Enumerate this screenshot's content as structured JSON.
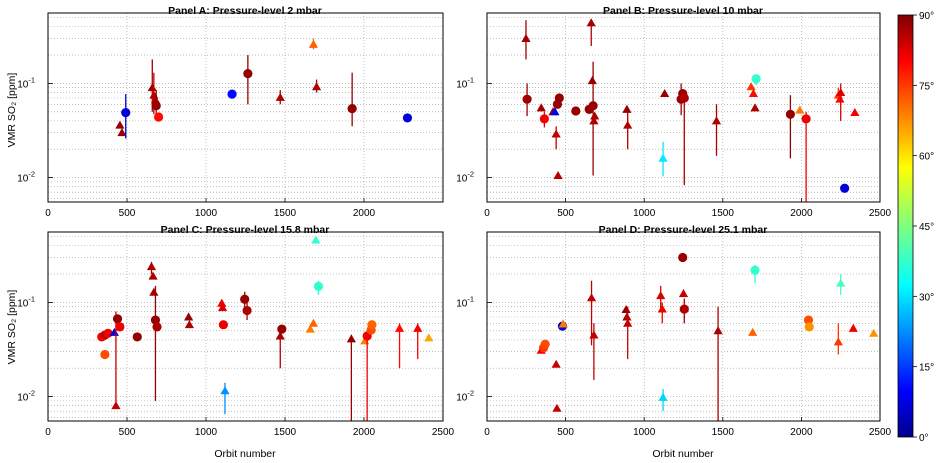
{
  "colors": {
    "cold": "#00008b",
    "hot": "#7f0000"
  },
  "chart_data": {
    "type": "scatter",
    "ylabel": "VMR SO₂ [ppm]",
    "xlabel": "Orbit number",
    "yscale": "log",
    "colorbar": {
      "min": 0,
      "max": 90,
      "ticks": [
        "0°",
        "15°",
        "30°",
        "45°",
        "60°",
        "75°",
        "90°"
      ],
      "colormap": "jet",
      "meaning": "latitude"
    },
    "panels": [
      {
        "title": "Panel A: Pressure-level 2 mbar",
        "xlim": [
          0,
          2500
        ],
        "ylim": [
          0.0055,
          0.56
        ],
        "xticks": [
          0,
          500,
          1000,
          1500,
          2000
        ],
        "yticks": [
          {
            "v": 0.01,
            "b": "10",
            "e": "-2"
          },
          {
            "v": 0.1,
            "b": "10",
            "e": "-1"
          }
        ],
        "xlabel_shown": false,
        "points": [
          {
            "x": 455,
            "y": 0.036,
            "m": "tri",
            "c": 88
          },
          {
            "x": 468,
            "y": 0.03,
            "m": "tri",
            "c": 88
          },
          {
            "x": 492,
            "y": 0.049,
            "m": "circ",
            "c": 8,
            "lo": 0.026,
            "hi": 0.077
          },
          {
            "x": 660,
            "y": 0.09,
            "m": "tri",
            "c": 87,
            "lo": 0.05,
            "hi": 0.18
          },
          {
            "x": 670,
            "y": 0.075,
            "m": "tri",
            "c": 85,
            "lo": 0.047,
            "hi": 0.13
          },
          {
            "x": 680,
            "y": 0.067,
            "m": "tri",
            "c": 86
          },
          {
            "x": 685,
            "y": 0.058,
            "m": "circ",
            "c": 88,
            "lo": 0.04,
            "hi": 0.085
          },
          {
            "x": 700,
            "y": 0.044,
            "m": "circ",
            "c": 78
          },
          {
            "x": 1165,
            "y": 0.077,
            "m": "circ",
            "c": 12
          },
          {
            "x": 1265,
            "y": 0.127,
            "m": "circ",
            "c": 88,
            "lo": 0.06,
            "hi": 0.2
          },
          {
            "x": 1470,
            "y": 0.071,
            "m": "tri",
            "c": 86,
            "lo": 0.06,
            "hi": 0.085
          },
          {
            "x": 1680,
            "y": 0.26,
            "m": "tri",
            "c": 70,
            "lo": 0.23,
            "hi": 0.3
          },
          {
            "x": 1700,
            "y": 0.092,
            "m": "tri",
            "c": 86,
            "lo": 0.08,
            "hi": 0.11
          },
          {
            "x": 1925,
            "y": 0.054,
            "m": "circ",
            "c": 88,
            "lo": 0.035,
            "hi": 0.13
          },
          {
            "x": 2275,
            "y": 0.043,
            "m": "circ",
            "c": 8
          }
        ]
      },
      {
        "title": "Panel B: Pressure-level 10 mbar",
        "xlim": [
          0,
          2500
        ],
        "ylim": [
          0.0055,
          0.56
        ],
        "xticks": [
          0,
          500,
          1000,
          1500,
          2000,
          2500
        ],
        "yticks": [
          {
            "v": 0.01,
            "b": "10",
            "e": "-2"
          },
          {
            "v": 0.1,
            "b": "10",
            "e": "-1"
          }
        ],
        "xlabel_shown": false,
        "points": [
          {
            "x": 248,
            "y": 0.3,
            "m": "tri",
            "c": 87,
            "lo": 0.18,
            "hi": 0.47
          },
          {
            "x": 255,
            "y": 0.068,
            "m": "circ",
            "c": 87,
            "lo": 0.045,
            "hi": 0.1
          },
          {
            "x": 345,
            "y": 0.055,
            "m": "tri",
            "c": 87
          },
          {
            "x": 365,
            "y": 0.042,
            "m": "circ",
            "c": 80,
            "lo": 0.034,
            "hi": 0.05
          },
          {
            "x": 420,
            "y": 0.05,
            "m": "tri",
            "c": 88
          },
          {
            "x": 432,
            "y": 0.05,
            "m": "tri",
            "c": 10
          },
          {
            "x": 440,
            "y": 0.029,
            "m": "tri",
            "c": 84,
            "lo": 0.02,
            "hi": 0.035
          },
          {
            "x": 448,
            "y": 0.06,
            "m": "circ",
            "c": 88
          },
          {
            "x": 452,
            "y": 0.0105,
            "m": "tri",
            "c": 85
          },
          {
            "x": 460,
            "y": 0.07,
            "m": "circ",
            "c": 88
          },
          {
            "x": 565,
            "y": 0.051,
            "m": "circ",
            "c": 88
          },
          {
            "x": 650,
            "y": 0.053,
            "m": "circ",
            "c": 88
          },
          {
            "x": 663,
            "y": 0.44,
            "m": "tri",
            "c": 86,
            "lo": 0.25,
            "hi": 0.47
          },
          {
            "x": 670,
            "y": 0.107,
            "m": "tri",
            "c": 88
          },
          {
            "x": 675,
            "y": 0.058,
            "m": "circ",
            "c": 88,
            "lo": 0.0105,
            "hi": 0.17
          },
          {
            "x": 680,
            "y": 0.04,
            "m": "tri",
            "c": 86
          },
          {
            "x": 685,
            "y": 0.045,
            "m": "tri",
            "c": 86
          },
          {
            "x": 890,
            "y": 0.053,
            "m": "tri",
            "c": 88
          },
          {
            "x": 895,
            "y": 0.036,
            "m": "tri",
            "c": 86,
            "lo": 0.02,
            "hi": 0.05
          },
          {
            "x": 1120,
            "y": 0.016,
            "m": "tri",
            "c": 32,
            "lo": 0.0103,
            "hi": 0.024
          },
          {
            "x": 1130,
            "y": 0.078,
            "m": "tri",
            "c": 88
          },
          {
            "x": 1235,
            "y": 0.068,
            "m": "circ",
            "c": 88,
            "lo": 0.046,
            "hi": 0.1
          },
          {
            "x": 1245,
            "y": 0.078,
            "m": "circ",
            "c": 88
          },
          {
            "x": 1255,
            "y": 0.07,
            "m": "circ",
            "c": 86,
            "lo": 0.0083,
            "hi": 0.085
          },
          {
            "x": 1460,
            "y": 0.04,
            "m": "tri",
            "c": 86,
            "lo": 0.017,
            "hi": 0.06
          },
          {
            "x": 1680,
            "y": 0.092,
            "m": "tri",
            "c": 74
          },
          {
            "x": 1695,
            "y": 0.078,
            "m": "tri",
            "c": 78
          },
          {
            "x": 1705,
            "y": 0.055,
            "m": "tri",
            "c": 86
          },
          {
            "x": 1712,
            "y": 0.112,
            "m": "circ",
            "c": 38,
            "lo": 0.095,
            "hi": 0.125
          },
          {
            "x": 1930,
            "y": 0.047,
            "m": "circ",
            "c": 88,
            "lo": 0.016,
            "hi": 0.075
          },
          {
            "x": 1990,
            "y": 0.052,
            "m": "tri",
            "c": 68
          },
          {
            "x": 2030,
            "y": 0.042,
            "m": "circ",
            "c": 80,
            "lo": 0.0055,
            "hi": 0.05
          },
          {
            "x": 2235,
            "y": 0.075,
            "m": "tri",
            "c": 74,
            "lo": 0.063,
            "hi": 0.09
          },
          {
            "x": 2245,
            "y": 0.068,
            "m": "tri",
            "c": 78
          },
          {
            "x": 2250,
            "y": 0.08,
            "m": "tri",
            "c": 82,
            "lo": 0.04,
            "hi": 0.1
          },
          {
            "x": 2275,
            "y": 0.0077,
            "m": "circ",
            "c": 8
          },
          {
            "x": 2340,
            "y": 0.049,
            "m": "tri",
            "c": 80
          }
        ]
      },
      {
        "title": "Panel C: Pressure-level 15.8 mbar",
        "xlim": [
          0,
          2500
        ],
        "ylim": [
          0.0055,
          0.56
        ],
        "xticks": [
          0,
          500,
          1000,
          1500,
          2000,
          2500
        ],
        "yticks": [
          {
            "v": 0.01,
            "b": "10",
            "e": "-2"
          },
          {
            "v": 0.1,
            "b": "10",
            "e": "-1"
          }
        ],
        "xlabel_shown": true,
        "points": [
          {
            "x": 340,
            "y": 0.043,
            "m": "circ",
            "c": 80
          },
          {
            "x": 360,
            "y": 0.045,
            "m": "circ",
            "c": 84
          },
          {
            "x": 360,
            "y": 0.028,
            "m": "circ",
            "c": 72
          },
          {
            "x": 380,
            "y": 0.047,
            "m": "circ",
            "c": 80
          },
          {
            "x": 420,
            "y": 0.048,
            "m": "tri",
            "c": 8
          },
          {
            "x": 430,
            "y": 0.008,
            "m": "tri",
            "c": 84,
            "lo": 0.008,
            "hi": 0.08
          },
          {
            "x": 440,
            "y": 0.067,
            "m": "circ",
            "c": 88
          },
          {
            "x": 455,
            "y": 0.055,
            "m": "circ",
            "c": 80
          },
          {
            "x": 565,
            "y": 0.043,
            "m": "circ",
            "c": 88
          },
          {
            "x": 655,
            "y": 0.24,
            "m": "tri",
            "c": 86,
            "lo": 0.2,
            "hi": 0.27
          },
          {
            "x": 665,
            "y": 0.19,
            "m": "tri",
            "c": 86
          },
          {
            "x": 670,
            "y": 0.128,
            "m": "tri",
            "c": 87
          },
          {
            "x": 680,
            "y": 0.065,
            "m": "circ",
            "c": 88,
            "lo": 0.009,
            "hi": 0.15
          },
          {
            "x": 690,
            "y": 0.055,
            "m": "circ",
            "c": 86
          },
          {
            "x": 890,
            "y": 0.07,
            "m": "tri",
            "c": 88
          },
          {
            "x": 895,
            "y": 0.058,
            "m": "tri",
            "c": 86
          },
          {
            "x": 1100,
            "y": 0.098,
            "m": "tri",
            "c": 80
          },
          {
            "x": 1105,
            "y": 0.088,
            "m": "tri",
            "c": 82
          },
          {
            "x": 1110,
            "y": 0.058,
            "m": "circ",
            "c": 80
          },
          {
            "x": 1120,
            "y": 0.0115,
            "m": "tri",
            "c": 24,
            "lo": 0.0065,
            "hi": 0.014
          },
          {
            "x": 1245,
            "y": 0.108,
            "m": "circ",
            "c": 88,
            "lo": 0.08,
            "hi": 0.13
          },
          {
            "x": 1260,
            "y": 0.082,
            "m": "circ",
            "c": 86,
            "lo": 0.065,
            "hi": 0.1
          },
          {
            "x": 1470,
            "y": 0.044,
            "m": "tri",
            "c": 86,
            "lo": 0.02,
            "hi": 0.05
          },
          {
            "x": 1480,
            "y": 0.052,
            "m": "circ",
            "c": 88
          },
          {
            "x": 1660,
            "y": 0.052,
            "m": "tri",
            "c": 68
          },
          {
            "x": 1680,
            "y": 0.06,
            "m": "tri",
            "c": 70
          },
          {
            "x": 1695,
            "y": 0.46,
            "m": "tri",
            "c": 38
          },
          {
            "x": 1712,
            "y": 0.148,
            "m": "circ",
            "c": 38,
            "lo": 0.12,
            "hi": 0.17
          },
          {
            "x": 1920,
            "y": 0.041,
            "m": "tri",
            "c": 88,
            "lo": 0.0055,
            "hi": 0.045
          },
          {
            "x": 2005,
            "y": 0.039,
            "m": "tri",
            "c": 68
          },
          {
            "x": 2020,
            "y": 0.044,
            "m": "circ",
            "c": 80,
            "lo": 0.0055,
            "hi": 0.05
          },
          {
            "x": 2045,
            "y": 0.051,
            "m": "circ",
            "c": 72
          },
          {
            "x": 2050,
            "y": 0.058,
            "m": "circ",
            "c": 70
          },
          {
            "x": 2225,
            "y": 0.053,
            "m": "tri",
            "c": 78,
            "lo": 0.02,
            "hi": 0.06
          },
          {
            "x": 2340,
            "y": 0.053,
            "m": "tri",
            "c": 80,
            "lo": 0.025,
            "hi": 0.06
          },
          {
            "x": 2410,
            "y": 0.042,
            "m": "tri",
            "c": 64
          }
        ]
      },
      {
        "title": "Panel D: Pressure-level 25.1 mbar",
        "xlim": [
          0,
          2500
        ],
        "ylim": [
          0.0055,
          0.56
        ],
        "xticks": [
          0,
          500,
          1000,
          1500,
          2000,
          2500
        ],
        "yticks": [
          {
            "v": 0.01,
            "b": "10",
            "e": "-2"
          },
          {
            "v": 0.1,
            "b": "10",
            "e": "-1"
          }
        ],
        "xlabel_shown": true,
        "points": [
          {
            "x": 345,
            "y": 0.031,
            "m": "tri",
            "c": 80
          },
          {
            "x": 360,
            "y": 0.033,
            "m": "circ",
            "c": 74
          },
          {
            "x": 370,
            "y": 0.036,
            "m": "circ",
            "c": 72
          },
          {
            "x": 440,
            "y": 0.022,
            "m": "tri",
            "c": 84
          },
          {
            "x": 445,
            "y": 0.0075,
            "m": "tri",
            "c": 84
          },
          {
            "x": 480,
            "y": 0.056,
            "m": "circ",
            "c": 8
          },
          {
            "x": 485,
            "y": 0.059,
            "m": "tri",
            "c": 68
          },
          {
            "x": 665,
            "y": 0.112,
            "m": "tri",
            "c": 84,
            "lo": 0.035,
            "hi": 0.17
          },
          {
            "x": 680,
            "y": 0.045,
            "m": "tri",
            "c": 84,
            "lo": 0.015,
            "hi": 0.06
          },
          {
            "x": 885,
            "y": 0.084,
            "m": "tri",
            "c": 88
          },
          {
            "x": 890,
            "y": 0.07,
            "m": "tri",
            "c": 86
          },
          {
            "x": 895,
            "y": 0.06,
            "m": "tri",
            "c": 84,
            "lo": 0.025,
            "hi": 0.09
          },
          {
            "x": 1105,
            "y": 0.118,
            "m": "tri",
            "c": 82,
            "lo": 0.08,
            "hi": 0.15
          },
          {
            "x": 1115,
            "y": 0.085,
            "m": "tri",
            "c": 80,
            "lo": 0.06,
            "hi": 0.1
          },
          {
            "x": 1120,
            "y": 0.0098,
            "m": "tri",
            "c": 30,
            "lo": 0.007,
            "hi": 0.012
          },
          {
            "x": 1245,
            "y": 0.3,
            "m": "circ",
            "c": 88
          },
          {
            "x": 1250,
            "y": 0.124,
            "m": "tri",
            "c": 84
          },
          {
            "x": 1255,
            "y": 0.085,
            "m": "circ",
            "c": 86,
            "lo": 0.06,
            "hi": 0.11
          },
          {
            "x": 1470,
            "y": 0.05,
            "m": "tri",
            "c": 86,
            "lo": 0.0055,
            "hi": 0.09
          },
          {
            "x": 1690,
            "y": 0.048,
            "m": "tri",
            "c": 70
          },
          {
            "x": 1705,
            "y": 0.22,
            "m": "circ",
            "c": 38,
            "lo": 0.16,
            "hi": 0.25
          },
          {
            "x": 2045,
            "y": 0.065,
            "m": "circ",
            "c": 72
          },
          {
            "x": 2050,
            "y": 0.055,
            "m": "circ",
            "c": 66
          },
          {
            "x": 2235,
            "y": 0.038,
            "m": "tri",
            "c": 74,
            "lo": 0.028,
            "hi": 0.06
          },
          {
            "x": 2250,
            "y": 0.16,
            "m": "tri",
            "c": 40,
            "lo": 0.12,
            "hi": 0.2
          },
          {
            "x": 2330,
            "y": 0.053,
            "m": "tri",
            "c": 80
          },
          {
            "x": 2460,
            "y": 0.047,
            "m": "tri",
            "c": 66
          }
        ]
      }
    ]
  }
}
